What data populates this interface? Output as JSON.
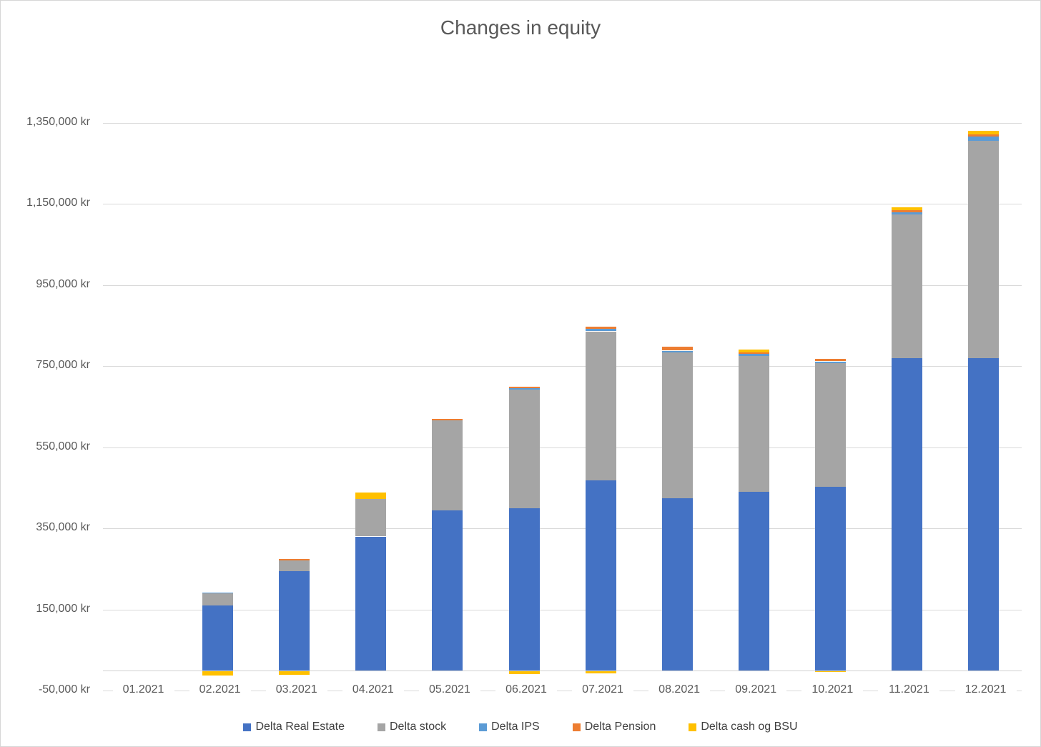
{
  "title": "Changes in equity",
  "chart_data": {
    "type": "bar",
    "stacked": true,
    "title": "Changes in equity",
    "xlabel": "",
    "ylabel": "",
    "unit": "kr",
    "grid": true,
    "legend_position": "bottom",
    "axis": {
      "min": -50000,
      "max": 1350000,
      "step": 200000,
      "ticks": [
        {
          "label": "-50,000 kr",
          "value": -50000
        },
        {
          "label": "150,000 kr",
          "value": 150000
        },
        {
          "label": "350,000 kr",
          "value": 350000
        },
        {
          "label": "550,000 kr",
          "value": 550000
        },
        {
          "label": "750,000 kr",
          "value": 750000
        },
        {
          "label": "950,000 kr",
          "value": 950000
        },
        {
          "label": "1,150,000 kr",
          "value": 1150000
        },
        {
          "label": "1,350,000 kr",
          "value": 1350000
        }
      ]
    },
    "categories": [
      "01.2021",
      "02.2021",
      "03.2021",
      "04.2021",
      "05.2021",
      "06.2021",
      "07.2021",
      "08.2021",
      "09.2021",
      "10.2021",
      "11.2021",
      "12.2021"
    ],
    "series": [
      {
        "name": "Delta Real Estate",
        "color": "#4472C4",
        "values": [
          0,
          160000,
          245000,
          330000,
          395000,
          400000,
          468000,
          425000,
          440000,
          452000,
          770000,
          770000
        ]
      },
      {
        "name": "Delta stock",
        "color": "#A5A5A5",
        "values": [
          0,
          30000,
          26000,
          92000,
          222000,
          292000,
          368000,
          359000,
          336000,
          305000,
          354000,
          536000
        ]
      },
      {
        "name": "Delta IPS",
        "color": "#5B9BD5",
        "values": [
          0,
          2000,
          0,
          0,
          0,
          4500,
          6000,
          4500,
          4500,
          5000,
          6000,
          10500
        ]
      },
      {
        "name": "Delta Pension",
        "color": "#ED7D31",
        "values": [
          0,
          0,
          4000,
          0,
          3500,
          2500,
          5500,
          10000,
          4000,
          6500,
          4500,
          5000
        ]
      },
      {
        "name": "Delta cash og BSU",
        "color": "#FFC000",
        "values": [
          0,
          -13000,
          -12000,
          16000,
          0,
          -9000,
          -7000,
          0,
          7000,
          -4000,
          7000,
          9000
        ]
      }
    ]
  }
}
